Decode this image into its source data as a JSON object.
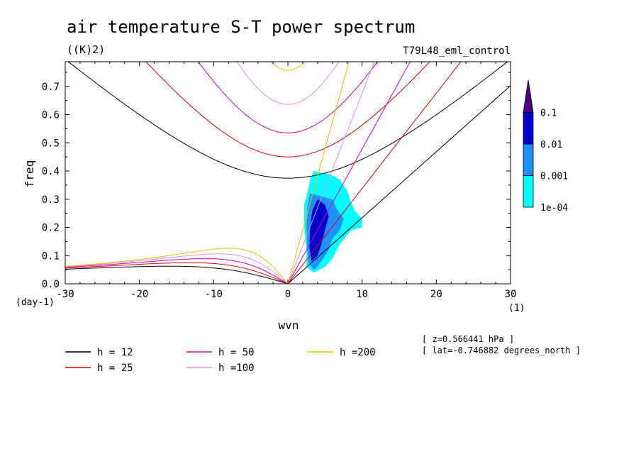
{
  "header": {
    "title": "air temperature S-T power spectrum",
    "units": "((K)2)",
    "run_name": "T79L48_eml_control"
  },
  "annotations": {
    "z": "[ z=0.566441 hPa ]",
    "lat": "[ lat=-0.746882 degrees_north ]"
  },
  "chart_data": {
    "type": "heatmap",
    "title": "air temperature S-T power spectrum",
    "subtitle": "((K)2)",
    "xlabel": "wvn",
    "ylabel": "freq",
    "x_unit": "(1)",
    "y_unit": "(day-1)",
    "xlim": [
      -30,
      30
    ],
    "ylim": [
      0,
      0.8
    ],
    "x_ticks": [
      -30,
      -20,
      -10,
      0,
      10,
      20,
      30
    ],
    "x_tick_labels": [
      "-30",
      "-20",
      "-10",
      "0",
      "10",
      "20",
      "30"
    ],
    "y_ticks": [
      0,
      0.1,
      0.2,
      0.3,
      0.4,
      0.5,
      0.6,
      0.7
    ],
    "y_tick_labels": [
      "0.0",
      "0.1",
      "0.2",
      "0.3",
      "0.4",
      "0.5",
      "0.6",
      "0.7"
    ],
    "colorbar": {
      "levels": [
        "1e-04",
        "0.001",
        "0.01",
        "0.1"
      ],
      "colors": [
        "#00ffff",
        "#1e90ff",
        "#0000cd",
        "#4b0082"
      ]
    },
    "dispersion_curves": [
      {
        "name": "h = 12",
        "equivalent_depth": 12,
        "color": "#000000"
      },
      {
        "name": "h = 25",
        "equivalent_depth": 25,
        "color": "#e00000"
      },
      {
        "name": "h = 50",
        "equivalent_depth": 50,
        "color": "#d000c0"
      },
      {
        "name": "h =100",
        "equivalent_depth": 100,
        "color": "#e090e0"
      },
      {
        "name": "h =200",
        "equivalent_depth": 200,
        "color": "#e8c000"
      }
    ],
    "power_regions": [
      {
        "level": "1e-04",
        "points": [
          [
            3.5,
            0.4
          ],
          [
            5.5,
            0.39
          ],
          [
            7,
            0.37
          ],
          [
            8,
            0.33
          ],
          [
            8.5,
            0.29
          ],
          [
            9,
            0.26
          ],
          [
            10,
            0.23
          ],
          [
            10,
            0.2
          ],
          [
            8.5,
            0.19
          ],
          [
            7,
            0.14
          ],
          [
            6,
            0.09
          ],
          [
            5,
            0.06
          ],
          [
            3.5,
            0.04
          ],
          [
            2.5,
            0.06
          ],
          [
            2.5,
            0.12
          ],
          [
            2.2,
            0.2
          ],
          [
            2.2,
            0.28
          ],
          [
            2.7,
            0.33
          ],
          [
            3,
            0.37
          ]
        ]
      },
      {
        "level": "0.001",
        "points": [
          [
            3,
            0.32
          ],
          [
            4.5,
            0.31
          ],
          [
            6,
            0.3
          ],
          [
            6.5,
            0.27
          ],
          [
            7.5,
            0.23
          ],
          [
            7,
            0.19
          ],
          [
            6,
            0.16
          ],
          [
            5.5,
            0.12
          ],
          [
            4.5,
            0.08
          ],
          [
            3.6,
            0.05
          ],
          [
            2.8,
            0.07
          ],
          [
            2.6,
            0.13
          ],
          [
            2.5,
            0.2
          ],
          [
            2.6,
            0.27
          ]
        ]
      },
      {
        "level": "0.01",
        "points": [
          [
            4,
            0.3
          ],
          [
            5,
            0.28
          ],
          [
            5.5,
            0.24
          ],
          [
            5,
            0.19
          ],
          [
            4.5,
            0.14
          ],
          [
            4,
            0.1
          ],
          [
            3.2,
            0.08
          ],
          [
            2.9,
            0.13
          ],
          [
            3,
            0.2
          ],
          [
            3.3,
            0.26
          ]
        ]
      }
    ]
  }
}
